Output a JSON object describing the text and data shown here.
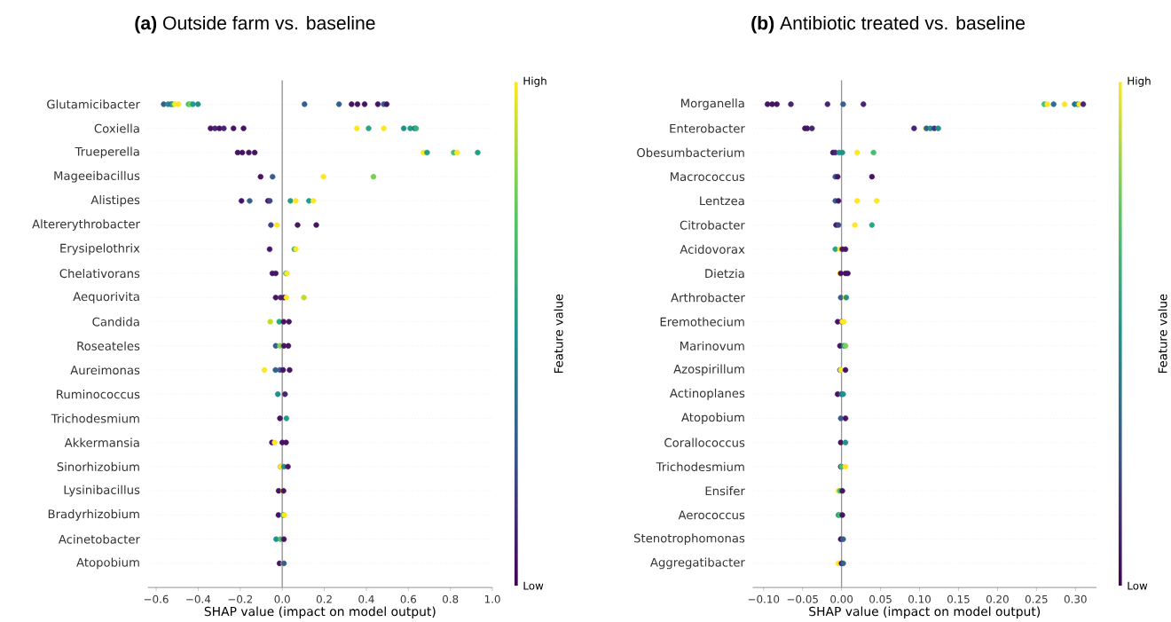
{
  "chart_data": [
    {
      "type": "scatter",
      "orientation": "horizontal",
      "title": "**(a)** Outside farm vs. baseline",
      "xlabel": "SHAP value (impact on model output)",
      "clabel": "Feature value",
      "annotations": [
        "Low",
        "High"
      ],
      "categories": [
        "Glutamicibacter",
        "Coxiella",
        "Trueperella",
        "Mageeibacillus",
        "Alistipes",
        "Altererythrobacter",
        "Erysipelothrix",
        "Chelativorans",
        "Aequorivita",
        "Candida",
        "Roseateles",
        "Aureimonas",
        "Ruminococcus",
        "Trichodesmium",
        "Akkermansia",
        "Sinorhizobium",
        "Lysinibacillus",
        "Bradyrhizobium",
        "Acinetobacter",
        "Atopobium"
      ],
      "xlim": [
        -0.64,
        1.0
      ],
      "xticks": [
        {
          "value": -0.6,
          "label": "−0.6"
        },
        {
          "value": -0.4,
          "label": "−0.4"
        },
        {
          "value": -0.2,
          "label": "−0.2"
        },
        {
          "value": 0,
          "label": "0.0"
        },
        {
          "value": 0.2,
          "label": "0.2"
        },
        {
          "value": 0.4,
          "label": "0.4"
        },
        {
          "value": 0.6,
          "label": "0.6"
        },
        {
          "value": 0.8,
          "label": "0.8"
        },
        {
          "value": 1.0,
          "label": "1.0"
        }
      ],
      "grid": "y",
      "marker": "circle",
      "ref_lines": [
        {
          "axis": "x",
          "value": 0,
          "color": "#999999"
        }
      ],
      "series": [
        {
          "x": [
            "Glutamicibacter",
            "Glutamicibacter",
            "Glutamicibacter",
            "Glutamicibacter",
            "Glutamicibacter",
            "Glutamicibacter",
            "Glutamicibacter",
            "Glutamicibacter",
            "Glutamicibacter",
            "Glutamicibacter",
            "Glutamicibacter",
            "Glutamicibacter",
            "Glutamicibacter",
            "Glutamicibacter",
            "Glutamicibacter",
            "Glutamicibacter",
            "Glutamicibacter",
            "Glutamicibacter",
            "Coxiella",
            "Coxiella",
            "Coxiella",
            "Coxiella",
            "Coxiella",
            "Coxiella",
            "Coxiella",
            "Coxiella",
            "Coxiella",
            "Coxiella",
            "Coxiella",
            "Coxiella",
            "Coxiella",
            "Trueperella",
            "Trueperella",
            "Trueperella",
            "Trueperella",
            "Trueperella",
            "Trueperella",
            "Trueperella",
            "Trueperella",
            "Trueperella",
            "Mageeibacillus",
            "Mageeibacillus",
            "Mageeibacillus",
            "Mageeibacillus",
            "Alistipes",
            "Alistipes",
            "Alistipes",
            "Alistipes",
            "Alistipes",
            "Alistipes",
            "Alistipes",
            "Alistipes",
            "Altererythrobacter",
            "Altererythrobacter",
            "Altererythrobacter",
            "Altererythrobacter",
            "Erysipelothrix",
            "Erysipelothrix",
            "Erysipelothrix",
            "Chelativorans",
            "Chelativorans",
            "Chelativorans",
            "Chelativorans",
            "Aequorivita",
            "Aequorivita",
            "Aequorivita",
            "Aequorivita",
            "Aequorivita",
            "Candida",
            "Candida",
            "Candida",
            "Candida",
            "Candida",
            "Roseateles",
            "Roseateles",
            "Roseateles",
            "Roseateles",
            "Aureimonas",
            "Aureimonas",
            "Aureimonas",
            "Aureimonas",
            "Aureimonas",
            "Ruminococcus",
            "Ruminococcus",
            "Trichodesmium",
            "Trichodesmium",
            "Akkermansia",
            "Akkermansia",
            "Akkermansia",
            "Akkermansia",
            "Sinorhizobium",
            "Sinorhizobium",
            "Sinorhizobium",
            "Sinorhizobium",
            "Lysinibacillus",
            "Lysinibacillus",
            "Lysinibacillus",
            "Bradyrhizobium",
            "Bradyrhizobium",
            "Bradyrhizobium",
            "Bradyrhizobium",
            "Acinetobacter",
            "Acinetobacter",
            "Acinetobacter",
            "Atopobium",
            "Atopobium",
            "Atopobium"
          ],
          "values": [
            -0.564,
            -0.543,
            -0.529,
            -0.522,
            -0.511,
            -0.494,
            -0.446,
            -0.436,
            -0.425,
            -0.401,
            0.106,
            0.27,
            0.33,
            0.358,
            0.392,
            0.455,
            0.483,
            0.497,
            -0.341,
            -0.32,
            -0.299,
            -0.278,
            -0.232,
            -0.184,
            0.355,
            0.411,
            0.483,
            0.578,
            0.609,
            0.63,
            0.637,
            -0.212,
            -0.19,
            -0.159,
            -0.131,
            0.672,
            0.689,
            0.816,
            0.832,
            0.93,
            -0.103,
            -0.046,
            0.196,
            0.434,
            -0.194,
            -0.155,
            -0.068,
            -0.059,
            0.039,
            0.064,
            0.127,
            0.148,
            -0.054,
            -0.025,
            0.073,
            0.162,
            -0.06,
            0.058,
            0.065,
            -0.047,
            -0.031,
            0.018,
            0.022,
            -0.031,
            -0.008,
            0.008,
            0.02,
            0.103,
            -0.057,
            -0.014,
            -0.014,
            0.007,
            0.032,
            -0.031,
            -0.011,
            0.008,
            0.029,
            -0.085,
            -0.032,
            -0.011,
            0.004,
            0.035,
            -0.021,
            0.013,
            -0.011,
            0.02,
            -0.049,
            -0.036,
            0,
            0.018,
            -0.008,
            -0.008,
            0.008,
            0.027,
            -0.017,
            0.004,
            0.006,
            -0.018,
            0.004,
            0.006,
            0.011,
            -0.029,
            -0.008,
            0.008,
            -0.013,
            0.006,
            0.008
          ],
          "colors": [
            "#355f8d",
            "#21918c",
            "#2f6c8e",
            "#22a884",
            "#fde725",
            "#fde725",
            "#44bf70",
            "#7ad151",
            "#1f9e89",
            "#21918c",
            "#355f8d",
            "#355f8d",
            "#471365",
            "#471365",
            "#471365",
            "#471365",
            "#355f8d",
            "#471365",
            "#471365",
            "#482475",
            "#471365",
            "#482475",
            "#471365",
            "#471365",
            "#fde725",
            "#22a884",
            "#fde725",
            "#21918c",
            "#1f9e89",
            "#2f6c8e",
            "#2fb47c",
            "#471365",
            "#471365",
            "#471365",
            "#471365",
            "#fde725",
            "#1f9e89",
            "#44bf70",
            "#fde725",
            "#1f9e89",
            "#471365",
            "#355f8d",
            "#fde725",
            "#7ad151",
            "#471365",
            "#355f8d",
            "#471365",
            "#414487",
            "#1f9e89",
            "#fde725",
            "#1f9e89",
            "#fde725",
            "#414487",
            "#fde725",
            "#471365",
            "#471365",
            "#471365",
            "#22a884",
            "#fde725",
            "#471365",
            "#471365",
            "#21918c",
            "#fde725",
            "#471365",
            "#482475",
            "#471365",
            "#fde725",
            "#bddf26",
            "#bddf26",
            "#fde725",
            "#22a884",
            "#471365",
            "#471365",
            "#355f8d",
            "#7ad151",
            "#471365",
            "#471365",
            "#fde725",
            "#355f8d",
            "#355f8d",
            "#471365",
            "#471365",
            "#21918c",
            "#482475",
            "#471365",
            "#1f9e89",
            "#471365",
            "#fde725",
            "#471365",
            "#471365",
            "#355f8d",
            "#fde725",
            "#21918c",
            "#471365",
            "#471365",
            "#fde725",
            "#471365",
            "#471365",
            "#21918c",
            "#44bf70",
            "#fde725",
            "#21918c",
            "#44bf70",
            "#471365",
            "#471365",
            "#fde725",
            "#355f8d"
          ]
        }
      ]
    },
    {
      "type": "scatter",
      "orientation": "horizontal",
      "title": "**(b)** Antibiotic treated vs. baseline",
      "xlabel": "SHAP value (impact on model output)",
      "clabel": "Feature value",
      "annotations": [
        "Low",
        "High"
      ],
      "categories": [
        "Morganella",
        "Enterobacter",
        "Obesumbacterium",
        "Macrococcus",
        "Lentzea",
        "Citrobacter",
        "Acidovorax",
        "Dietzia",
        "Arthrobacter",
        "Eremothecium",
        "Marinovum",
        "Azospirillum",
        "Actinoplanes",
        "Atopobium",
        "Corallococcus",
        "Trichodesmium",
        "Ensifer",
        "Aerococcus",
        "Stenotrophomonas",
        "Aggregatibacter"
      ],
      "xlim": [
        -0.114,
        0.327
      ],
      "xticks": [
        {
          "value": -0.1,
          "label": "−0.10"
        },
        {
          "value": -0.05,
          "label": "−0.05"
        },
        {
          "value": 0,
          "label": "0.00"
        },
        {
          "value": 0.05,
          "label": "0.05"
        },
        {
          "value": 0.1,
          "label": "0.10"
        },
        {
          "value": 0.15,
          "label": "0.15"
        },
        {
          "value": 0.2,
          "label": "0.20"
        },
        {
          "value": 0.25,
          "label": "0.25"
        },
        {
          "value": 0.3,
          "label": "0.30"
        }
      ],
      "grid": "y",
      "marker": "circle",
      "ref_lines": [
        {
          "axis": "x",
          "value": 0,
          "color": "#999999"
        }
      ],
      "series": [
        {
          "x": [
            "Morganella",
            "Morganella",
            "Morganella",
            "Morganella",
            "Morganella",
            "Morganella",
            "Morganella",
            "Morganella",
            "Morganella",
            "Morganella",
            "Morganella",
            "Morganella",
            "Morganella",
            "Morganella",
            "Morganella",
            "Enterobacter",
            "Enterobacter",
            "Enterobacter",
            "Enterobacter",
            "Enterobacter",
            "Enterobacter",
            "Enterobacter",
            "Enterobacter",
            "Enterobacter",
            "Obesumbacterium",
            "Obesumbacterium",
            "Obesumbacterium",
            "Obesumbacterium",
            "Obesumbacterium",
            "Obesumbacterium",
            "Macrococcus",
            "Macrococcus",
            "Macrococcus",
            "Lentzea",
            "Lentzea",
            "Lentzea",
            "Lentzea",
            "Citrobacter",
            "Citrobacter",
            "Citrobacter",
            "Citrobacter",
            "Acidovorax",
            "Acidovorax",
            "Acidovorax",
            "Acidovorax",
            "Dietzia",
            "Dietzia",
            "Dietzia",
            "Dietzia",
            "Arthrobacter",
            "Arthrobacter",
            "Arthrobacter",
            "Eremothecium",
            "Eremothecium",
            "Eremothecium",
            "Eremothecium",
            "Marinovum",
            "Marinovum",
            "Marinovum",
            "Azospirillum",
            "Azospirillum",
            "Azospirillum",
            "Actinoplanes",
            "Actinoplanes",
            "Actinoplanes",
            "Atopobium",
            "Atopobium",
            "Corallococcus",
            "Corallococcus",
            "Trichodesmium",
            "Trichodesmium",
            "Trichodesmium",
            "Ensifer",
            "Ensifer",
            "Ensifer",
            "Aerococcus",
            "Aerococcus",
            "Aerococcus",
            "Stenotrophomonas",
            "Stenotrophomonas",
            "Aggregatibacter",
            "Aggregatibacter",
            "Aggregatibacter"
          ],
          "values": [
            -0.095,
            -0.089,
            -0.083,
            -0.065,
            -0.018,
            0.002,
            0.028,
            0.26,
            0.264,
            0.272,
            0.286,
            0.299,
            0.303,
            0.305,
            0.31,
            -0.047,
            -0.044,
            -0.038,
            0.093,
            0.108,
            0.109,
            0.114,
            0.119,
            0.124,
            -0.011,
            -0.008,
            -0.003,
            0.001,
            0.02,
            0.041,
            -0.008,
            -0.005,
            0.039,
            -0.008,
            -0.004,
            0.02,
            0.045,
            -0.007,
            -0.004,
            0.017,
            0.039,
            -0.008,
            -0.002,
            0.001,
            0.005,
            -0.002,
            -0.001,
            0.005,
            0.008,
            -0.001,
            0.005,
            0.006,
            -0.005,
            0,
            0.001,
            0.003,
            -0.002,
            0.003,
            0.005,
            -0.002,
            -0.001,
            0.005,
            -0.005,
            0,
            0.002,
            -0.001,
            0.005,
            -0.001,
            0.005,
            -0.001,
            0,
            0.005,
            -0.004,
            -0.002,
            0.001,
            -0.004,
            -0.002,
            0.001,
            -0.001,
            0.002,
            -0.004,
            0,
            0.002
          ],
          "colors": [
            "#471365",
            "#471365",
            "#471365",
            "#482475",
            "#482475",
            "#355f8d",
            "#482475",
            "#44bf70",
            "#fde725",
            "#2f6c8e",
            "#fde725",
            "#2f6c8e",
            "#21918c",
            "#fde725",
            "#482475",
            "#471365",
            "#471365",
            "#482475",
            "#482475",
            "#fde725",
            "#355f8d",
            "#21918c",
            "#463480",
            "#21918c",
            "#471365",
            "#482475",
            "#21918c",
            "#21918c",
            "#fde725",
            "#44bf70",
            "#355f8d",
            "#471365",
            "#471365",
            "#355f8d",
            "#471365",
            "#fde725",
            "#fde725",
            "#471365",
            "#414487",
            "#fde725",
            "#22a884",
            "#22a884",
            "#fde725",
            "#471365",
            "#471365",
            "#fde725",
            "#471365",
            "#471365",
            "#471365",
            "#355f8d",
            "#fde725",
            "#21918c",
            "#471365",
            "#471365",
            "#fde725",
            "#fde725",
            "#471365",
            "#21918c",
            "#7ad151",
            "#355f8d",
            "#fde725",
            "#471365",
            "#471365",
            "#355f8d",
            "#21918c",
            "#355f8d",
            "#471365",
            "#471365",
            "#21918c",
            "#471365",
            "#44bf70",
            "#fde725",
            "#fde725",
            "#44bf70",
            "#471365",
            "#21918c",
            "#44bf70",
            "#471365",
            "#471365",
            "#355f8d",
            "#fde725",
            "#471365",
            "#355f8d"
          ]
        }
      ]
    }
  ]
}
